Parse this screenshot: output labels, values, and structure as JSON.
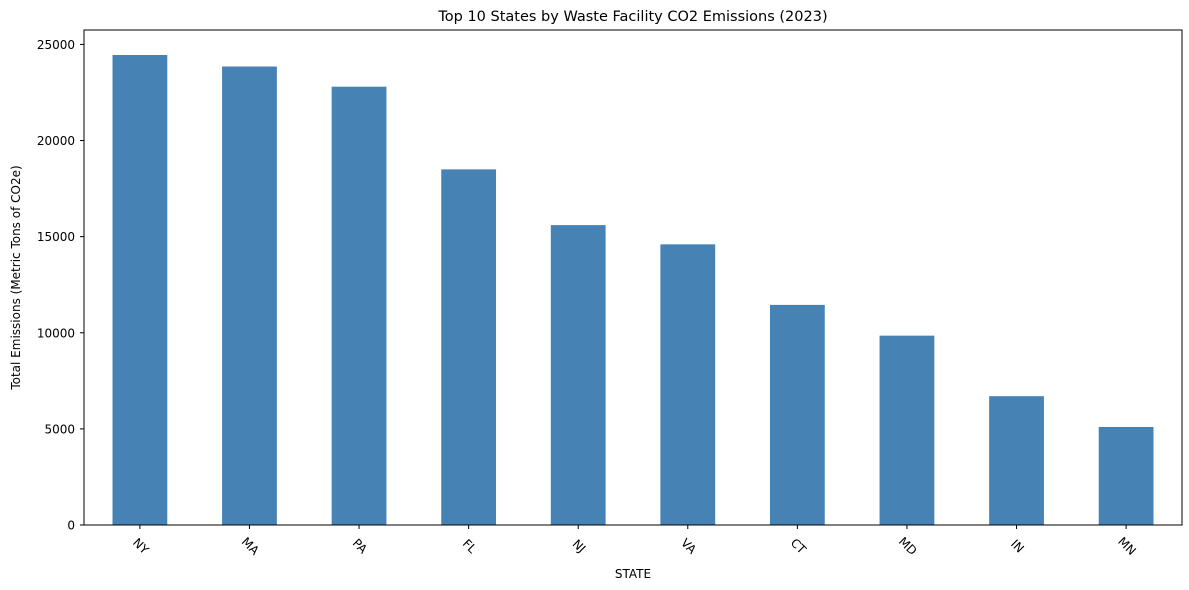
{
  "chart_data": {
    "type": "bar",
    "title": "Top 10 States by Waste Facility CO2 Emissions (2023)",
    "xlabel": "STATE",
    "ylabel": "Total Emissions (Metric Tons of CO2e)",
    "categories": [
      "NY",
      "MA",
      "PA",
      "FL",
      "NJ",
      "VA",
      "CT",
      "MD",
      "IN",
      "MN"
    ],
    "values": [
      24450,
      23850,
      22800,
      18500,
      15600,
      14600,
      11450,
      9850,
      6700,
      5100
    ],
    "ylim": [
      0,
      25750
    ],
    "yticks": [
      0,
      5000,
      10000,
      15000,
      20000,
      25000
    ],
    "grid": false,
    "color": "#4682b4"
  }
}
